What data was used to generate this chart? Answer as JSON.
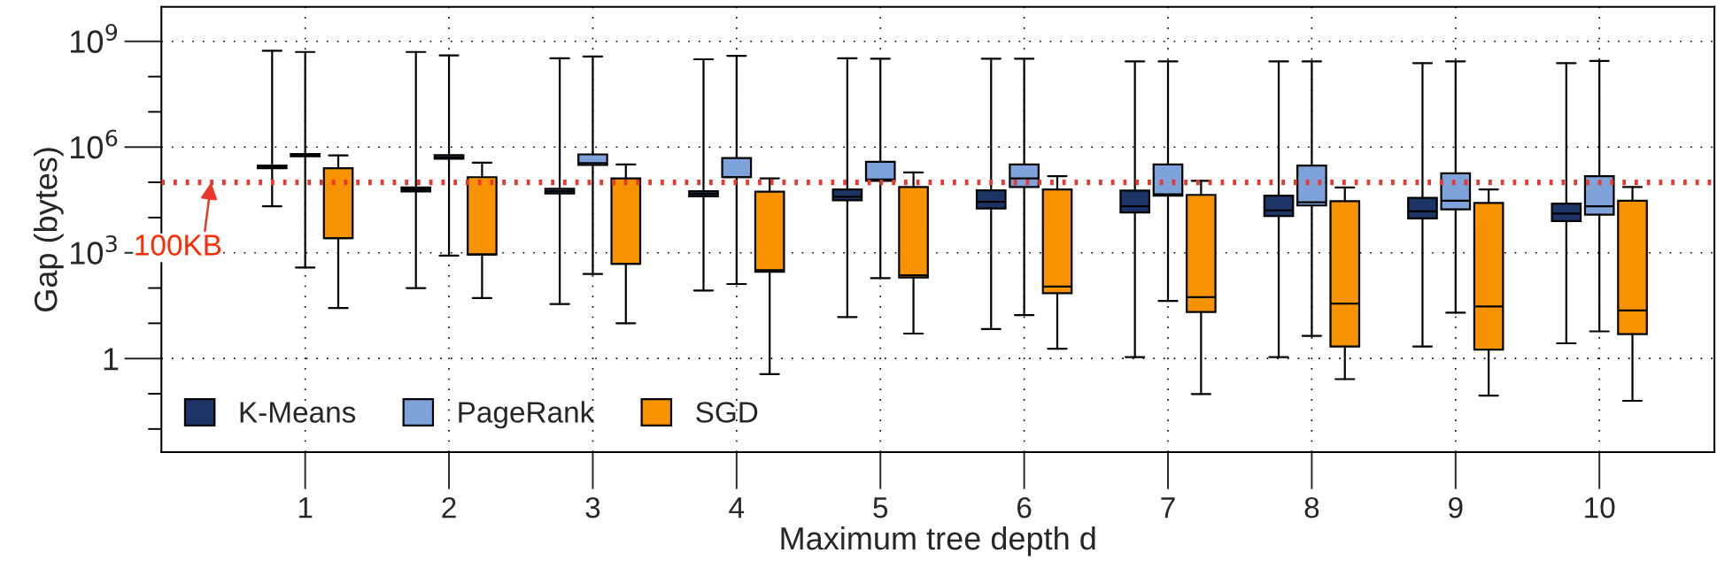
{
  "chart_data": {
    "type": "box",
    "xlabel": "Maximum tree depth d",
    "ylabel": "Gap (bytes)",
    "categories": [
      "1",
      "2",
      "3",
      "4",
      "5",
      "6",
      "7",
      "8",
      "9",
      "10"
    ],
    "log": "y",
    "ylim": [
      0.0022,
      9500000000
    ],
    "yticks": [
      {
        "value": 0.01,
        "label": null
      },
      {
        "value": 0.1,
        "label": null
      },
      1,
      {
        "value": 10,
        "label": null
      },
      {
        "value": 100,
        "label": null
      },
      {
        "value": 1000,
        "label": "10$^{3}$"
      },
      {
        "value": 10000,
        "label": null
      },
      {
        "value": 100000,
        "label": null
      },
      {
        "value": 1000000,
        "label": "10$^{6}$"
      },
      {
        "value": 10000000,
        "label": null
      },
      {
        "value": 100000000,
        "label": null
      },
      {
        "value": 1000000000,
        "label": "10$^{9}$"
      }
    ],
    "grid": true,
    "legend": "bottom left",
    "ref_lines": [
      {
        "axis": "y",
        "value": 100000,
        "label": "100KB",
        "color": "#e8372c",
        "line_style": "dotted"
      }
    ],
    "series": [
      {
        "name": "K-Means",
        "color": "#1c3566",
        "boxes": [
          {
            "low": 21000,
            "q1": 250000,
            "median": 280000,
            "q3": 300000,
            "high": 540000000
          },
          {
            "low": 100,
            "q1": 55000,
            "median": 63000,
            "q3": 71000,
            "high": 500000000
          },
          {
            "low": 35,
            "q1": 48000,
            "median": 56000,
            "q3": 66000,
            "high": 330000000
          },
          {
            "low": 85,
            "q1": 40000,
            "median": 47000,
            "q3": 56000,
            "high": 310000000
          },
          {
            "low": 15,
            "q1": 31000,
            "median": 39000,
            "q3": 63000,
            "high": 330000000
          },
          {
            "low": 6.9,
            "q1": 18000,
            "median": 28000,
            "q3": 59000,
            "high": 320000000
          },
          {
            "low": 1.1,
            "q1": 14000,
            "median": 21000,
            "q3": 58000,
            "high": 270000000
          },
          {
            "low": 1.1,
            "q1": 11000,
            "median": 16000,
            "q3": 42000,
            "high": 270000000
          },
          {
            "low": 2.2,
            "q1": 9500,
            "median": 15000,
            "q3": 36000,
            "high": 240000000
          },
          {
            "low": 2.7,
            "q1": 7900,
            "median": 13000,
            "q3": 25000,
            "high": 240000000
          }
        ]
      },
      {
        "name": "PageRank",
        "color": "#7ea3da",
        "boxes": [
          {
            "low": 380,
            "q1": 550000,
            "median": 590000,
            "q3": 630000,
            "high": 500000000
          },
          {
            "low": 830,
            "q1": 470000,
            "median": 520000,
            "q3": 590000,
            "high": 400000000
          },
          {
            "low": 250,
            "q1": 310000,
            "median": 350000,
            "q3": 620000,
            "high": 370000000
          },
          {
            "low": 130,
            "q1": 140000,
            "median": 140000,
            "q3": 490000,
            "high": 390000000
          },
          {
            "low": 190,
            "q1": 110000,
            "median": 120000,
            "q3": 380000,
            "high": 320000000
          },
          {
            "low": 17,
            "q1": 74000,
            "median": 130000,
            "q3": 320000,
            "high": 320000000
          },
          {
            "low": 43,
            "q1": 42000,
            "median": 46000,
            "q3": 320000,
            "high": 270000000
          },
          {
            "low": 4.4,
            "q1": 22000,
            "median": 27000,
            "q3": 300000,
            "high": 270000000
          },
          {
            "low": 20,
            "q1": 17000,
            "median": 30000,
            "q3": 180000,
            "high": 270000000
          },
          {
            "low": 5.9,
            "q1": 12000,
            "median": 21000,
            "q3": 150000,
            "high": 280000000
          }
        ]
      },
      {
        "name": "SGD",
        "color": "#f79200",
        "boxes": [
          {
            "low": 27,
            "q1": 2600,
            "median": 2600,
            "q3": 250000,
            "high": 580000
          },
          {
            "low": 52,
            "q1": 890,
            "median": 890,
            "q3": 140000,
            "high": 360000
          },
          {
            "low": 10,
            "q1": 490,
            "median": 490,
            "q3": 130000,
            "high": 320000
          },
          {
            "low": 0.36,
            "q1": 290,
            "median": 320,
            "q3": 54000,
            "high": 130000
          },
          {
            "low": 5.1,
            "q1": 200,
            "median": 230,
            "q3": 74000,
            "high": 190000
          },
          {
            "low": 1.9,
            "q1": 71,
            "median": 110,
            "q3": 63000,
            "high": 150000
          },
          {
            "low": 0.098,
            "q1": 21,
            "median": 55,
            "q3": 44000,
            "high": 110000
          },
          {
            "low": 0.26,
            "q1": 2.2,
            "median": 36,
            "q3": 29000,
            "high": 71000
          },
          {
            "low": 0.089,
            "q1": 1.8,
            "median": 30,
            "q3": 26000,
            "high": 63000
          },
          {
            "low": 0.063,
            "q1": 4.9,
            "median": 23,
            "q3": 30000,
            "high": 74000
          }
        ]
      }
    ]
  }
}
